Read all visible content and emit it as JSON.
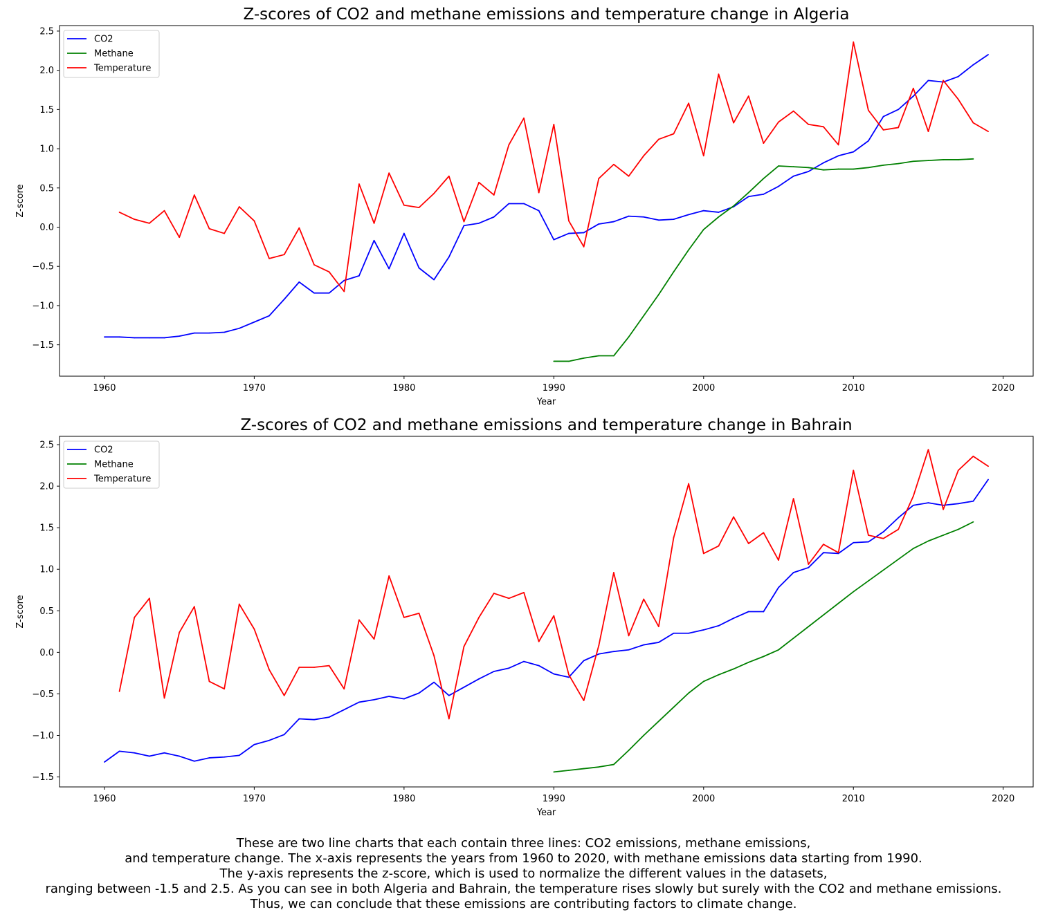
{
  "charts": [
    {
      "title": "Z-scores of CO2 and methane emissions and temperature change in Algeria"
    },
    {
      "title": "Z-scores of CO2 and methane emissions and temperature change in Bahrain"
    }
  ],
  "caption": [
    "These are two line charts that each contain three lines: CO2 emissions, methane emissions,",
    "and temperature change. The x-axis represents the years from 1960 to 2020, with methane emissions data starting from 1990.",
    "The y-axis represents the z-score, which is used to normalize the different values in the datasets,",
    "ranging between -1.5 and 2.5. As you can see in both Algeria and Bahrain, the temperature rises slowly but surely with the CO2 and methane emissions.",
    "Thus, we can conclude that these emissions are contributing factors to climate change."
  ],
  "chart_data": [
    {
      "type": "line",
      "title": "Z-scores of CO2 and methane emissions and temperature change in Algeria",
      "xlabel": "Year",
      "ylabel": "Z-score",
      "xlim": [
        1957,
        2022
      ],
      "ylim": [
        -1.9,
        2.57
      ],
      "xticks": [
        1960,
        1970,
        1980,
        1990,
        2000,
        2010,
        2020
      ],
      "yticks": [
        -1.5,
        -1.0,
        -0.5,
        0.0,
        0.5,
        1.0,
        1.5,
        2.0,
        2.5
      ],
      "legend_position": "top-left",
      "grid": false,
      "series": [
        {
          "name": "CO2",
          "color": "#0000ff",
          "x_start": 1960,
          "values": [
            -1.4,
            -1.4,
            -1.41,
            -1.41,
            -1.41,
            -1.39,
            -1.35,
            -1.35,
            -1.34,
            -1.29,
            -1.21,
            -1.13,
            -0.92,
            -0.7,
            -0.84,
            -0.84,
            -0.68,
            -0.62,
            -0.17,
            -0.53,
            -0.08,
            -0.52,
            -0.67,
            -0.38,
            0.02,
            0.05,
            0.13,
            0.3,
            0.3,
            0.21,
            -0.16,
            -0.08,
            -0.07,
            0.04,
            0.07,
            0.14,
            0.13,
            0.09,
            0.1,
            0.16,
            0.21,
            0.19,
            0.26,
            0.39,
            0.42,
            0.52,
            0.65,
            0.71,
            0.82,
            0.91,
            0.96,
            1.1,
            1.41,
            1.5,
            1.67,
            1.87,
            1.85,
            1.92,
            2.07,
            2.2
          ]
        },
        {
          "name": "Methane",
          "color": "#008000",
          "x_start": 1990,
          "values": [
            -1.71,
            -1.71,
            -1.67,
            -1.64,
            -1.64,
            -1.4,
            -1.13,
            -0.86,
            -0.57,
            -0.29,
            -0.03,
            0.13,
            0.27,
            0.44,
            0.62,
            0.78,
            0.77,
            0.76,
            0.73,
            0.74,
            0.74,
            0.76,
            0.79,
            0.81,
            0.84,
            0.85,
            0.86,
            0.86,
            0.87
          ]
        },
        {
          "name": "Temperature",
          "color": "#ff0000",
          "x_start": 1961,
          "values": [
            0.19,
            0.1,
            0.05,
            0.21,
            -0.13,
            0.41,
            -0.02,
            -0.08,
            0.26,
            0.08,
            -0.4,
            -0.35,
            -0.01,
            -0.48,
            -0.57,
            -0.82,
            0.55,
            0.05,
            0.69,
            0.28,
            0.25,
            0.43,
            0.65,
            0.07,
            0.57,
            0.41,
            1.05,
            1.39,
            0.44,
            1.31,
            0.08,
            -0.25,
            0.62,
            0.8,
            0.65,
            0.91,
            1.12,
            1.19,
            1.58,
            0.91,
            1.95,
            1.33,
            1.67,
            1.07,
            1.34,
            1.48,
            1.31,
            1.28,
            1.05,
            2.36,
            1.49,
            1.24,
            1.27,
            1.77,
            1.22,
            1.87,
            1.63,
            1.33,
            1.22
          ]
        }
      ]
    },
    {
      "type": "line",
      "title": "Z-scores of CO2 and methane emissions and temperature change in Bahrain",
      "xlabel": "Year",
      "ylabel": "Z-score",
      "xlim": [
        1957,
        2022
      ],
      "ylim": [
        -1.62,
        2.6
      ],
      "xticks": [
        1960,
        1970,
        1980,
        1990,
        2000,
        2010,
        2020
      ],
      "yticks": [
        -1.5,
        -1.0,
        -0.5,
        0.0,
        0.5,
        1.0,
        1.5,
        2.0,
        2.5
      ],
      "legend_position": "top-left",
      "grid": false,
      "series": [
        {
          "name": "CO2",
          "color": "#0000ff",
          "x_start": 1960,
          "values": [
            -1.32,
            -1.19,
            -1.21,
            -1.25,
            -1.21,
            -1.25,
            -1.31,
            -1.27,
            -1.26,
            -1.24,
            -1.11,
            -1.06,
            -0.99,
            -0.8,
            -0.81,
            -0.78,
            -0.69,
            -0.6,
            -0.57,
            -0.53,
            -0.56,
            -0.49,
            -0.36,
            -0.52,
            -0.42,
            -0.32,
            -0.23,
            -0.19,
            -0.11,
            -0.16,
            -0.26,
            -0.3,
            -0.1,
            -0.02,
            0.01,
            0.03,
            0.09,
            0.12,
            0.23,
            0.23,
            0.27,
            0.32,
            0.41,
            0.49,
            0.49,
            0.78,
            0.96,
            1.02,
            1.2,
            1.19,
            1.32,
            1.33,
            1.45,
            1.62,
            1.77,
            1.8,
            1.77,
            1.79,
            1.82,
            2.08
          ]
        },
        {
          "name": "Methane",
          "color": "#008000",
          "x_start": 1990,
          "values": [
            -1.44,
            -1.42,
            -1.4,
            -1.38,
            -1.35,
            -1.18,
            -1.0,
            -0.83,
            -0.66,
            -0.49,
            -0.35,
            -0.27,
            -0.2,
            -0.12,
            -0.05,
            0.03,
            0.17,
            0.31,
            0.45,
            0.59,
            0.73,
            0.86,
            0.99,
            1.12,
            1.25,
            1.34,
            1.41,
            1.48,
            1.57
          ]
        },
        {
          "name": "Temperature",
          "color": "#ff0000",
          "x_start": 1961,
          "values": [
            -0.47,
            0.42,
            0.65,
            -0.55,
            0.24,
            0.55,
            -0.35,
            -0.44,
            0.58,
            0.28,
            -0.21,
            -0.52,
            -0.18,
            -0.18,
            -0.16,
            -0.44,
            0.39,
            0.16,
            0.92,
            0.42,
            0.47,
            -0.04,
            -0.8,
            0.07,
            0.42,
            0.71,
            0.65,
            0.72,
            0.13,
            0.44,
            -0.27,
            -0.58,
            0.08,
            0.96,
            0.2,
            0.64,
            0.31,
            1.38,
            2.03,
            1.19,
            1.28,
            1.63,
            1.31,
            1.44,
            1.11,
            1.85,
            1.06,
            1.3,
            1.2,
            2.19,
            1.41,
            1.37,
            1.48,
            1.88,
            2.44,
            1.72,
            2.19,
            2.36,
            2.24
          ]
        }
      ]
    }
  ]
}
